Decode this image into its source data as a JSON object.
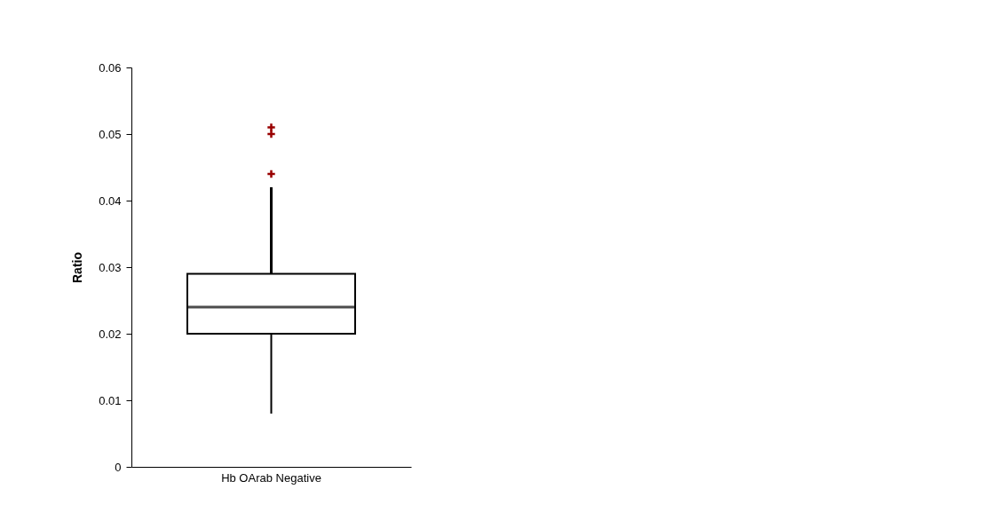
{
  "chart_data": {
    "type": "box",
    "ylabel": "Ratio",
    "categories": [
      "Hb OArab Negative"
    ],
    "boxes": [
      {
        "low": 0.008,
        "q1": 0.02,
        "median": 0.024,
        "q3": 0.029,
        "high": 0.042,
        "outliers": [
          0.044,
          0.05,
          0.051
        ]
      }
    ],
    "ylim": [
      0,
      0.06
    ],
    "yticks": [
      0,
      0.01,
      0.02,
      0.03,
      0.04,
      0.05,
      0.06
    ],
    "grid": false
  }
}
